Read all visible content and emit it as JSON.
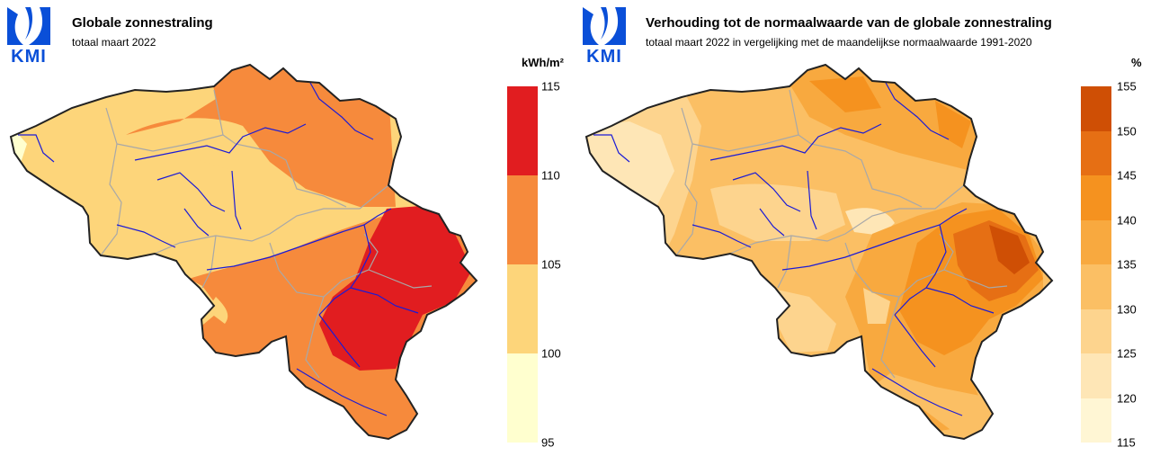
{
  "left_map": {
    "logo_text": "KMI",
    "title": "Globale zonnestraling",
    "subtitle": "totaal maart 2022",
    "unit": "kWh/m²",
    "legend": {
      "ticks": [
        "115",
        "110",
        "105",
        "100",
        "95"
      ],
      "bins": [
        {
          "from": 110,
          "to": 115,
          "color": "#e11d20"
        },
        {
          "from": 105,
          "to": 110,
          "color": "#f68a3c"
        },
        {
          "from": 100,
          "to": 105,
          "color": "#fdd57a"
        },
        {
          "from": 95,
          "to": 100,
          "color": "#ffffcf"
        }
      ]
    }
  },
  "right_map": {
    "logo_text": "KMI",
    "title": "Verhouding tot de normaalwaarde van de globale zonnestraling",
    "subtitle": "totaal maart 2022 in vergelijking met de maandelijkse normaalwaarde 1991-2020",
    "unit": "%",
    "legend": {
      "ticks": [
        "155",
        "150",
        "145",
        "140",
        "135",
        "130",
        "125",
        "120",
        "115"
      ],
      "bins": [
        {
          "from": 150,
          "to": 155,
          "color": "#cf4f05"
        },
        {
          "from": 145,
          "to": 150,
          "color": "#e66f14"
        },
        {
          "from": 140,
          "to": 145,
          "color": "#f5921f"
        },
        {
          "from": 135,
          "to": 140,
          "color": "#f8a93f"
        },
        {
          "from": 130,
          "to": 135,
          "color": "#fbbf64"
        },
        {
          "from": 125,
          "to": 130,
          "color": "#fdd48e"
        },
        {
          "from": 120,
          "to": 125,
          "color": "#fee6b6"
        },
        {
          "from": 115,
          "to": 120,
          "color": "#fff6d4"
        }
      ]
    }
  },
  "colors": {
    "border": "#222222",
    "rivers": "#1b1bd6",
    "provinces": "#a8a8a8",
    "logo": "#0a4fd8"
  }
}
